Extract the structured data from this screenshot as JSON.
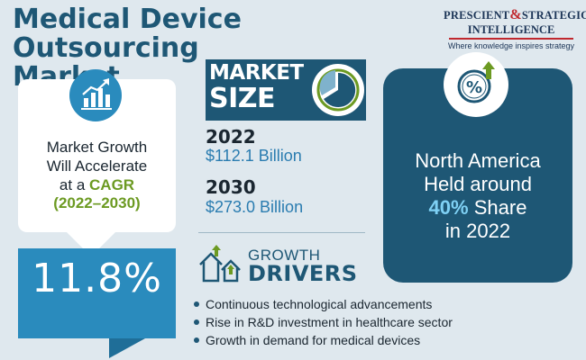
{
  "title": {
    "line1": "Medical Device Outsourcing",
    "line2": "Market"
  },
  "logo": {
    "word1": "PRESCIENT",
    "ampersand": "&",
    "word2": "STRATEGIC",
    "word3": "INTELLIGENCE",
    "tagline": "Where knowledge inspires strategy"
  },
  "growth": {
    "icon": "growth-chart-icon",
    "line1": "Market Growth",
    "line2": "Will Accelerate",
    "line3_prefix": "at a",
    "cagr_label": "CAGR",
    "period": "(2022–2030)",
    "value": "11.8%"
  },
  "market_size": {
    "label_line1": "MARKET",
    "label_line2": "SIZE",
    "icon": "pie-chart-icon",
    "entries": [
      {
        "year": "2022",
        "value": "$112.1 Billion"
      },
      {
        "year": "2030",
        "value": "$273.0 Billion"
      }
    ]
  },
  "growth_drivers": {
    "icon": "houses-growth-icon",
    "label_line1": "GROWTH",
    "label_line2": "DRIVERS",
    "items": [
      "Continuous technological advancements",
      "Rise in R&D investment in healthcare sector",
      "Growth in demand for medical devices"
    ]
  },
  "region": {
    "icon": "percent-growth-icon",
    "line1": "North America",
    "line2": "Held around",
    "share": "40%",
    "share_suffix": "Share",
    "line4": "in 2022"
  },
  "colors": {
    "background": "#dfe8ee",
    "primary": "#1e5775",
    "accent_blue": "#2a8bbd",
    "accent_green": "#6c9a22",
    "highlight": "#7fd1f5",
    "logo_red": "#c0282e"
  }
}
